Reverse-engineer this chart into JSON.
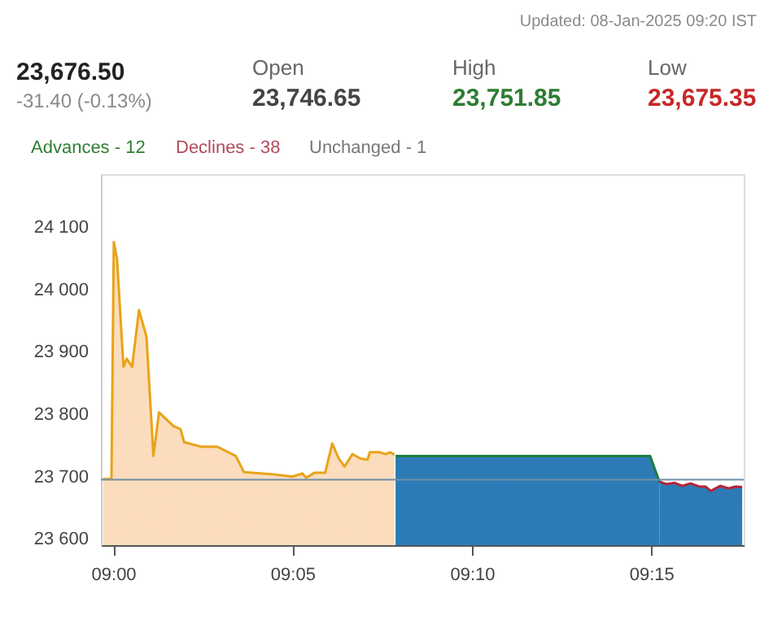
{
  "chart_data": {
    "type": "area",
    "annotations": [
      "Updated: 08-Jan-2025 09:20 IST",
      "23,676.50",
      "-31.40 (-0.13%)",
      "Open",
      "23,746.65",
      "High",
      "23,751.85",
      "Low",
      "23,675.35",
      "Advances - 12",
      "Declines - 38",
      "Unchanged - 1"
    ],
    "series": [
      {
        "color": "#e8a317",
        "x": [
          8.9953,
          8.9992,
          9.0003,
          9.0018,
          9.0048,
          9.0063,
          9.0088,
          9.012,
          9.0155,
          9.0187,
          9.0213,
          9.028,
          9.0313,
          9.033,
          9.0407,
          9.0482,
          9.057,
          9.0608,
          9.0733,
          9.0833,
          9.088,
          9.0897,
          9.0935,
          9.0985,
          9.1018,
          9.1048,
          9.1075,
          9.1112,
          9.1148,
          9.1182,
          9.1193,
          9.1237,
          9.1267,
          9.1287,
          9.1307
        ],
        "values": [
          23696,
          23696,
          24076,
          24049,
          23876,
          23889,
          23876,
          23967,
          23924,
          23733,
          23803,
          23781,
          23776,
          23755,
          23748,
          23748,
          23733,
          23707,
          23704,
          23700,
          23705,
          23698,
          23706,
          23706,
          23753,
          23729,
          23716,
          23736,
          23729,
          23727,
          23739,
          23739,
          23736,
          23739,
          23735
        ]
      },
      {
        "color": "#1e7b3c",
        "x": [
          9.1312,
          9.2495,
          9.2538
        ],
        "values": [
          23733,
          23733,
          23692
        ]
      },
      {
        "color": "#b3263a",
        "x": [
          9.2538,
          9.257,
          9.2608,
          9.2645,
          9.2683,
          9.2722,
          9.2752,
          9.2777,
          9.2822,
          9.286,
          9.2893,
          9.2923
        ],
        "values": [
          23692,
          23688,
          23690,
          23685,
          23689,
          23684,
          23684,
          23677,
          23685,
          23681,
          23684,
          23683
        ]
      }
    ],
    "ref_lines": [
      {
        "axis": "y",
        "value": 23695,
        "color": "#6f8fa8"
      }
    ],
    "xlim": [
      8.9943,
      9.293
    ],
    "ylim": [
      23590,
      24185
    ],
    "xticks": [
      {
        "value": 9,
        "label": "09:00"
      },
      {
        "value": 9.0833,
        "label": "09:05"
      },
      {
        "value": 9.1667,
        "label": "09:10"
      },
      {
        "value": 9.25,
        "label": "09:15"
      }
    ],
    "yticks": [
      {
        "value": 23600,
        "label": "23 600"
      },
      {
        "value": 23700,
        "label": "23 700"
      },
      {
        "value": 23800,
        "label": "23 800"
      },
      {
        "value": 23900,
        "label": "23 900"
      },
      {
        "value": 24000,
        "label": "24 000"
      },
      {
        "value": 24100,
        "label": "24 100"
      }
    ],
    "grid": false
  }
}
